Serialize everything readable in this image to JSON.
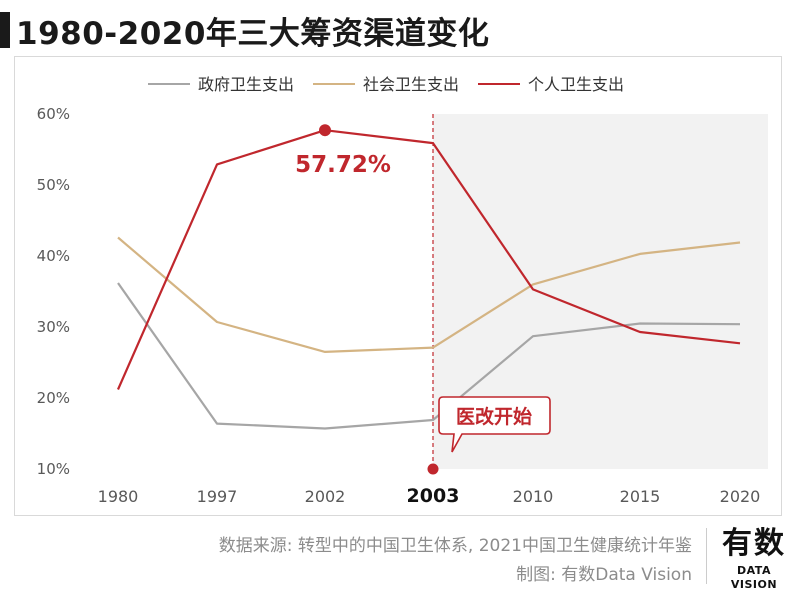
{
  "title": "1980-2020年三大筹资渠道变化",
  "source_line1": "数据来源: 转型中的中国卫生体系, 2021中国卫生健康统计年鉴",
  "source_line2": "制图: 有数Data Vision",
  "logo": {
    "main": "有数",
    "sub": "DATA VISION"
  },
  "colors": {
    "government": "#a6a6a6",
    "social": "#d4b483",
    "personal": "#c0272d",
    "shade": "#f2f2f2",
    "axis_text": "#595959"
  },
  "chart_data": {
    "type": "line",
    "categories": [
      "1980",
      "1997",
      "2002",
      "2003",
      "2010",
      "2015",
      "2020"
    ],
    "highlight_category": "2003",
    "ylim": [
      10,
      60
    ],
    "yticks": [
      10,
      20,
      30,
      40,
      50,
      60
    ],
    "ytick_labels": [
      "10%",
      "20%",
      "30%",
      "40%",
      "50%",
      "60%"
    ],
    "legend_position": "top",
    "series": [
      {
        "name": "政府卫生支出",
        "color_key": "government",
        "values": [
          36.2,
          16.4,
          15.7,
          16.9,
          28.7,
          30.5,
          30.4
        ]
      },
      {
        "name": "社会卫生支出",
        "color_key": "social",
        "values": [
          42.6,
          30.7,
          26.5,
          27.1,
          36.0,
          40.3,
          41.9
        ]
      },
      {
        "name": "个人卫生支出",
        "color_key": "personal",
        "values": [
          21.2,
          52.9,
          57.72,
          55.9,
          35.3,
          29.3,
          27.7
        ]
      }
    ],
    "peak_label": "57.72%",
    "peak_category": "2002",
    "reform_label": "医改开始",
    "shaded_from_category": "2003"
  }
}
